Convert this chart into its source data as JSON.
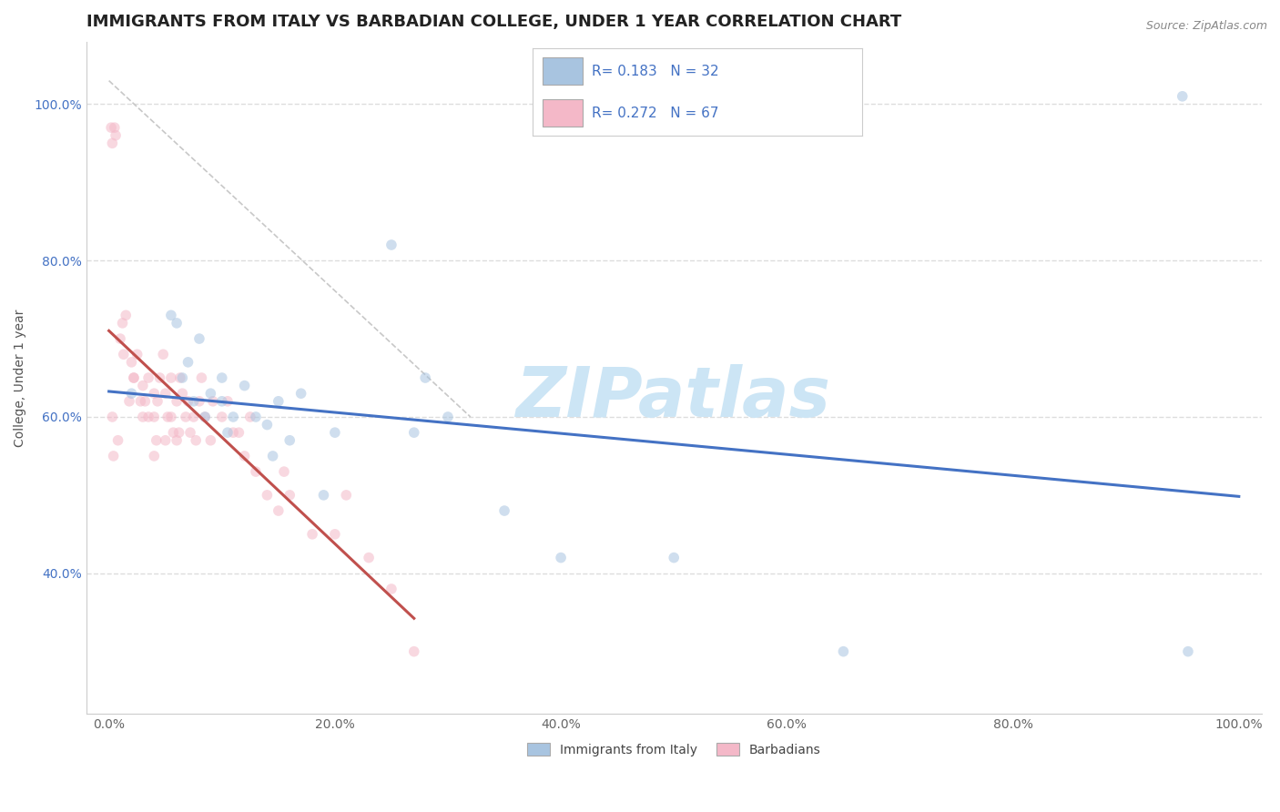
{
  "title": "IMMIGRANTS FROM ITALY VS BARBADIAN COLLEGE, UNDER 1 YEAR CORRELATION CHART",
  "source_text": "Source: ZipAtlas.com",
  "ylabel": "College, Under 1 year",
  "blue_R": 0.183,
  "blue_N": 32,
  "pink_R": 0.272,
  "pink_N": 67,
  "blue_color": "#a8c4e0",
  "pink_color": "#f4b8c8",
  "blue_line_color": "#4472c4",
  "pink_line_color": "#c0504d",
  "dash_color": "#c8c8c8",
  "legend_blue_fill": "#a8c4e0",
  "legend_pink_fill": "#f4b8c8",
  "blue_scatter_x": [
    0.02,
    0.055,
    0.06,
    0.065,
    0.07,
    0.075,
    0.08,
    0.085,
    0.09,
    0.1,
    0.1,
    0.105,
    0.11,
    0.12,
    0.13,
    0.14,
    0.145,
    0.15,
    0.16,
    0.17,
    0.19,
    0.2,
    0.25,
    0.27,
    0.28,
    0.3,
    0.35,
    0.4,
    0.5,
    0.65,
    0.95,
    0.955
  ],
  "blue_scatter_y": [
    0.63,
    0.73,
    0.72,
    0.65,
    0.67,
    0.62,
    0.7,
    0.6,
    0.63,
    0.65,
    0.62,
    0.58,
    0.6,
    0.64,
    0.6,
    0.59,
    0.55,
    0.62,
    0.57,
    0.63,
    0.5,
    0.58,
    0.82,
    0.58,
    0.65,
    0.6,
    0.48,
    0.42,
    0.42,
    0.3,
    1.01,
    0.3
  ],
  "pink_scatter_x": [
    0.002,
    0.003,
    0.005,
    0.006,
    0.01,
    0.012,
    0.013,
    0.015,
    0.02,
    0.022,
    0.025,
    0.028,
    0.03,
    0.03,
    0.032,
    0.035,
    0.04,
    0.04,
    0.042,
    0.043,
    0.045,
    0.048,
    0.05,
    0.052,
    0.055,
    0.057,
    0.06,
    0.062,
    0.063,
    0.065,
    0.068,
    0.07,
    0.072,
    0.075,
    0.077,
    0.08,
    0.082,
    0.085,
    0.09,
    0.092,
    0.1,
    0.105,
    0.11,
    0.115,
    0.12,
    0.125,
    0.13,
    0.14,
    0.15,
    0.155,
    0.16,
    0.18,
    0.2,
    0.21,
    0.23,
    0.25,
    0.27,
    0.003,
    0.004,
    0.008,
    0.018,
    0.022,
    0.035,
    0.04,
    0.05,
    0.055,
    0.06
  ],
  "pink_scatter_y": [
    0.97,
    0.95,
    0.97,
    0.96,
    0.7,
    0.72,
    0.68,
    0.73,
    0.67,
    0.65,
    0.68,
    0.62,
    0.64,
    0.6,
    0.62,
    0.65,
    0.63,
    0.6,
    0.57,
    0.62,
    0.65,
    0.68,
    0.63,
    0.6,
    0.65,
    0.58,
    0.62,
    0.58,
    0.65,
    0.63,
    0.6,
    0.62,
    0.58,
    0.6,
    0.57,
    0.62,
    0.65,
    0.6,
    0.57,
    0.62,
    0.6,
    0.62,
    0.58,
    0.58,
    0.55,
    0.6,
    0.53,
    0.5,
    0.48,
    0.53,
    0.5,
    0.45,
    0.45,
    0.5,
    0.42,
    0.38,
    0.3,
    0.6,
    0.55,
    0.57,
    0.62,
    0.65,
    0.6,
    0.55,
    0.57,
    0.6,
    0.57
  ],
  "xlim": [
    -0.02,
    1.02
  ],
  "ylim": [
    0.22,
    1.08
  ],
  "xticks": [
    0.0,
    0.2,
    0.4,
    0.6,
    0.8,
    1.0
  ],
  "xticklabels": [
    "0.0%",
    "20.0%",
    "40.0%",
    "60.0%",
    "80.0%",
    "100.0%"
  ],
  "yticks": [
    0.4,
    0.6,
    0.8,
    1.0
  ],
  "yticklabels": [
    "40.0%",
    "60.0%",
    "80.0%",
    "100.0%"
  ],
  "grid_color": "#dddddd",
  "bg_color": "#ffffff",
  "watermark_color": "#cce5f5",
  "title_fontsize": 13,
  "ylabel_fontsize": 10,
  "tick_fontsize": 10,
  "scatter_size": 70,
  "scatter_alpha": 0.55
}
